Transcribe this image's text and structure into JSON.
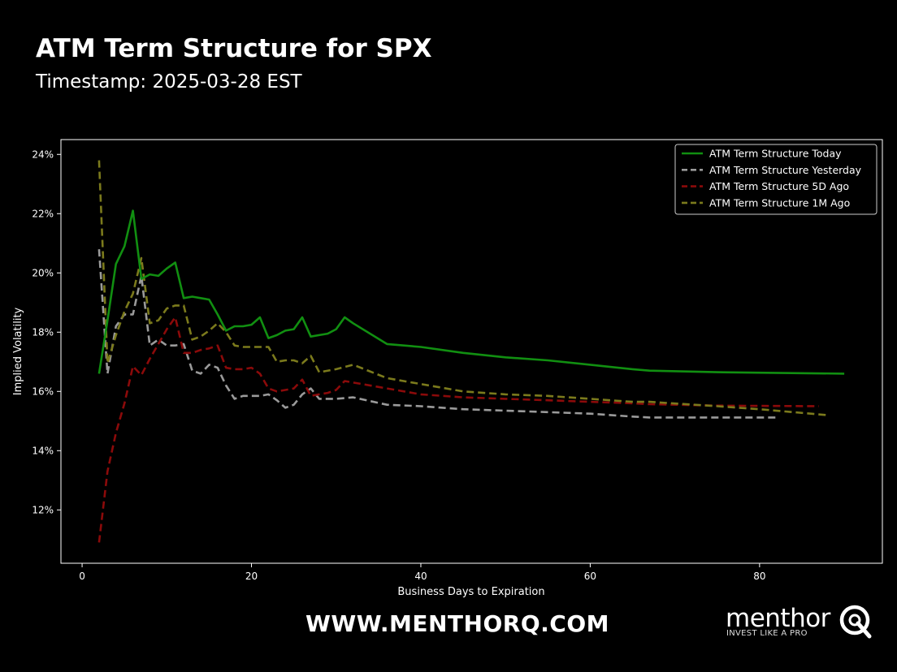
{
  "header": {
    "title": "ATM Term Structure for SPX",
    "subtitle": "Timestamp: 2025-03-28 EST"
  },
  "footer": {
    "website": "WWW.MENTHORQ.COM",
    "brand": "menthor",
    "tagline": "INVEST LIKE A PRO"
  },
  "colors": {
    "background": "#000000",
    "axes": "#ffffff",
    "today": "#118f11",
    "yesterday": "#9a9a9a",
    "five_day": "#8b0a0a",
    "one_month": "#7b7a1c"
  },
  "chart_data": {
    "type": "line",
    "title": "",
    "xlabel": "Business Days to Expiration",
    "ylabel": "Implied Volatility",
    "xlim": [
      -2.5,
      94.5
    ],
    "ylim": [
      10.2,
      24.5
    ],
    "xticks": [
      0,
      20,
      40,
      60,
      80
    ],
    "yticks": [
      12,
      14,
      16,
      18,
      20,
      22,
      24
    ],
    "ytick_labels": [
      "12%",
      "14%",
      "16%",
      "18%",
      "20%",
      "22%",
      "24%"
    ],
    "grid": false,
    "legend_position": "top-right",
    "series": [
      {
        "name": "ATM Term Structure Today",
        "style": "solid",
        "color": "#118f11",
        "points": [
          [
            2,
            16.6
          ],
          [
            3,
            18.4
          ],
          [
            4,
            20.3
          ],
          [
            5,
            20.9
          ],
          [
            6,
            22.1
          ],
          [
            7,
            19.8
          ],
          [
            8,
            19.95
          ],
          [
            9,
            19.9
          ],
          [
            10,
            20.15
          ],
          [
            11,
            20.35
          ],
          [
            12,
            19.15
          ],
          [
            13,
            19.2
          ],
          [
            14,
            19.15
          ],
          [
            15,
            19.1
          ],
          [
            16,
            18.6
          ],
          [
            17,
            18.05
          ],
          [
            18,
            18.2
          ],
          [
            19,
            18.2
          ],
          [
            20,
            18.25
          ],
          [
            21,
            18.5
          ],
          [
            22,
            17.8
          ],
          [
            23,
            17.9
          ],
          [
            24,
            18.05
          ],
          [
            25,
            18.1
          ],
          [
            26,
            18.5
          ],
          [
            27,
            17.85
          ],
          [
            28,
            17.9
          ],
          [
            29,
            17.95
          ],
          [
            30,
            18.1
          ],
          [
            31,
            18.5
          ],
          [
            32,
            18.3
          ],
          [
            36,
            17.6
          ],
          [
            40,
            17.5
          ],
          [
            45,
            17.3
          ],
          [
            50,
            17.15
          ],
          [
            55,
            17.05
          ],
          [
            60,
            16.9
          ],
          [
            65,
            16.75
          ],
          [
            67,
            16.7
          ],
          [
            75,
            16.65
          ],
          [
            90,
            16.6
          ]
        ]
      },
      {
        "name": "ATM Term Structure Yesterday",
        "style": "dashed",
        "color": "#9a9a9a",
        "points": [
          [
            2,
            20.8
          ],
          [
            3,
            16.6
          ],
          [
            4,
            18.2
          ],
          [
            5,
            18.6
          ],
          [
            6,
            18.6
          ],
          [
            7,
            19.9
          ],
          [
            8,
            17.55
          ],
          [
            9,
            17.75
          ],
          [
            10,
            17.55
          ],
          [
            11,
            17.55
          ],
          [
            12,
            17.6
          ],
          [
            13,
            16.7
          ],
          [
            14,
            16.6
          ],
          [
            15,
            16.9
          ],
          [
            16,
            16.8
          ],
          [
            17,
            16.2
          ],
          [
            18,
            15.75
          ],
          [
            19,
            15.85
          ],
          [
            20,
            15.85
          ],
          [
            21,
            15.85
          ],
          [
            22,
            15.9
          ],
          [
            23,
            15.7
          ],
          [
            24,
            15.45
          ],
          [
            25,
            15.55
          ],
          [
            26,
            15.9
          ],
          [
            27,
            16.1
          ],
          [
            28,
            15.75
          ],
          [
            30,
            15.75
          ],
          [
            32,
            15.8
          ],
          [
            36,
            15.55
          ],
          [
            40,
            15.5
          ],
          [
            45,
            15.4
          ],
          [
            50,
            15.35
          ],
          [
            55,
            15.3
          ],
          [
            60,
            15.25
          ],
          [
            65,
            15.15
          ],
          [
            67,
            15.12
          ],
          [
            75,
            15.12
          ],
          [
            82,
            15.12
          ]
        ]
      },
      {
        "name": "ATM Term Structure 5D Ago",
        "style": "dashed",
        "color": "#8b0a0a",
        "points": [
          [
            2,
            10.9
          ],
          [
            3,
            13.3
          ],
          [
            4,
            14.6
          ],
          [
            5,
            15.6
          ],
          [
            6,
            16.85
          ],
          [
            7,
            16.55
          ],
          [
            8,
            17.1
          ],
          [
            9,
            17.6
          ],
          [
            10,
            18.1
          ],
          [
            11,
            18.5
          ],
          [
            12,
            17.3
          ],
          [
            13,
            17.3
          ],
          [
            14,
            17.4
          ],
          [
            15,
            17.45
          ],
          [
            16,
            17.55
          ],
          [
            17,
            16.8
          ],
          [
            18,
            16.75
          ],
          [
            19,
            16.75
          ],
          [
            20,
            16.8
          ],
          [
            21,
            16.6
          ],
          [
            22,
            16.1
          ],
          [
            23,
            16.0
          ],
          [
            24,
            16.05
          ],
          [
            25,
            16.1
          ],
          [
            26,
            16.4
          ],
          [
            27,
            15.85
          ],
          [
            28,
            15.9
          ],
          [
            29,
            15.95
          ],
          [
            30,
            16.05
          ],
          [
            31,
            16.35
          ],
          [
            32,
            16.3
          ],
          [
            36,
            16.1
          ],
          [
            40,
            15.9
          ],
          [
            45,
            15.8
          ],
          [
            50,
            15.75
          ],
          [
            55,
            15.7
          ],
          [
            60,
            15.65
          ],
          [
            65,
            15.6
          ],
          [
            67,
            15.57
          ],
          [
            75,
            15.52
          ],
          [
            87,
            15.5
          ]
        ]
      },
      {
        "name": "ATM Term Structure 1M Ago",
        "style": "dashed",
        "color": "#7b7a1c",
        "points": [
          [
            2,
            23.8
          ],
          [
            3,
            16.95
          ],
          [
            4,
            17.9
          ],
          [
            5,
            18.7
          ],
          [
            6,
            19.3
          ],
          [
            7,
            20.5
          ],
          [
            8,
            18.3
          ],
          [
            9,
            18.4
          ],
          [
            10,
            18.8
          ],
          [
            11,
            18.9
          ],
          [
            12,
            18.9
          ],
          [
            13,
            17.75
          ],
          [
            14,
            17.85
          ],
          [
            15,
            18.05
          ],
          [
            16,
            18.3
          ],
          [
            17,
            18.0
          ],
          [
            18,
            17.55
          ],
          [
            19,
            17.5
          ],
          [
            20,
            17.5
          ],
          [
            21,
            17.5
          ],
          [
            22,
            17.5
          ],
          [
            23,
            17.0
          ],
          [
            24,
            17.05
          ],
          [
            25,
            17.05
          ],
          [
            26,
            16.95
          ],
          [
            27,
            17.2
          ],
          [
            28,
            16.65
          ],
          [
            30,
            16.75
          ],
          [
            32,
            16.9
          ],
          [
            36,
            16.45
          ],
          [
            40,
            16.25
          ],
          [
            45,
            16.0
          ],
          [
            50,
            15.9
          ],
          [
            55,
            15.85
          ],
          [
            60,
            15.75
          ],
          [
            65,
            15.65
          ],
          [
            67,
            15.65
          ],
          [
            75,
            15.5
          ],
          [
            80,
            15.4
          ],
          [
            88,
            15.2
          ]
        ]
      }
    ]
  }
}
